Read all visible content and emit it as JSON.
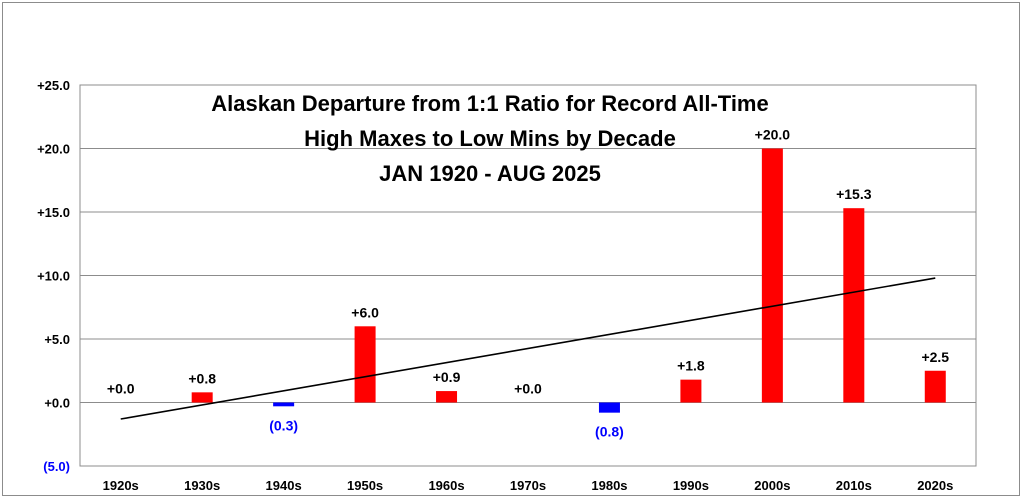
{
  "chart_data": {
    "type": "bar",
    "title": "Alaskan Departure from 1:1 Ratio for Record All-Time\nHigh Maxes to Low Mins by Decade\nJAN 1920 - AUG 2025",
    "title_lines": [
      "Alaskan Departure from 1:1 Ratio for Record All-Time",
      "High Maxes to Low Mins by Decade",
      "JAN 1920 - AUG 2025"
    ],
    "xlabel": "",
    "ylabel": "",
    "categories": [
      "1920s",
      "1930s",
      "1940s",
      "1950s",
      "1960s",
      "1970s",
      "1980s",
      "1990s",
      "2000s",
      "2010s",
      "2020s"
    ],
    "values": [
      0.0,
      0.8,
      -0.3,
      6.0,
      0.9,
      0.0,
      -0.8,
      1.8,
      20.0,
      15.3,
      2.5
    ],
    "data_labels": [
      "+0.0",
      "+0.8",
      "(0.3)",
      "+6.0",
      "+0.9",
      "+0.0",
      "(0.8)",
      "+1.8",
      "+20.0",
      "+15.3",
      "+2.5"
    ],
    "ylim": [
      -5,
      25
    ],
    "y_ticks": [
      25,
      20,
      15,
      10,
      5,
      0,
      -5
    ],
    "y_tick_labels": [
      "+25.0",
      "+20.0",
      "+15.0",
      "+10.0",
      "+5.0",
      "+0.0",
      "(5.0)"
    ],
    "grid": true,
    "legend": "none",
    "trendline": {
      "type": "linear",
      "start": -1.3,
      "end": 9.8
    },
    "colors": {
      "positive": "#ff0000",
      "negative": "#0000ff",
      "negative_label": "#0000ff",
      "positive_label": "#000000",
      "grid": "#8c8c8c",
      "trend": "#000000"
    }
  }
}
